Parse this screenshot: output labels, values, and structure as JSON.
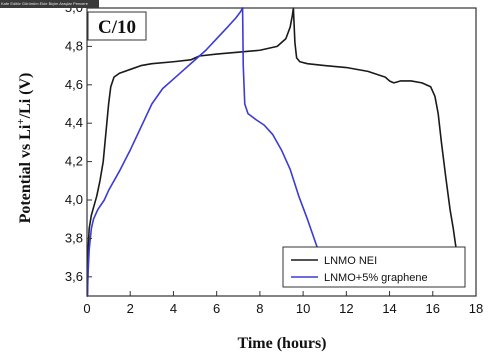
{
  "topbar": {
    "text": "Kafe  Editör  Görünüm  Ekle  Biçim  Araçlar  Pencere"
  },
  "chart_data": {
    "type": "line",
    "panel_label": "C/10",
    "xlabel": "Time (hours)",
    "ylabel_main": "Potential vs Li",
    "ylabel_sup": "+",
    "ylabel_end": "/Li (V)",
    "xlim": [
      0,
      18
    ],
    "ylim": [
      3.5,
      5.0
    ],
    "xticks": [
      0,
      2,
      4,
      6,
      8,
      10,
      12,
      14,
      16,
      18
    ],
    "yticks": [
      3.6,
      3.8,
      4.0,
      4.2,
      4.4,
      4.6,
      4.8,
      5.0
    ],
    "ytick_labels": [
      "3,6",
      "3,8",
      "4,0",
      "4,2",
      "4,4",
      "4,6",
      "4,8",
      "5,0"
    ],
    "grid": false,
    "legend_position": "bottom-right",
    "series": [
      {
        "name": "LNMO NEI",
        "color": "#1a1a1a",
        "x": [
          0.02,
          0.06,
          0.1,
          0.2,
          0.3,
          0.45,
          0.6,
          0.75,
          0.9,
          1.0,
          1.1,
          1.25,
          1.5,
          2.0,
          2.5,
          3.0,
          4.0,
          4.8,
          5.2,
          6.0,
          7.0,
          8.0,
          8.8,
          9.2,
          9.4,
          9.5,
          9.55,
          9.62,
          9.7,
          9.85,
          10.2,
          11.0,
          12.0,
          13.0,
          13.8,
          14.0,
          14.2,
          14.5,
          15.0,
          15.5,
          15.9,
          16.1,
          16.25,
          16.4,
          16.6,
          16.8,
          16.95,
          17.05,
          17.15
        ],
        "y": [
          3.5,
          3.76,
          3.85,
          3.92,
          3.96,
          4.02,
          4.1,
          4.2,
          4.38,
          4.5,
          4.59,
          4.64,
          4.66,
          4.68,
          4.7,
          4.71,
          4.72,
          4.73,
          4.75,
          4.76,
          4.77,
          4.78,
          4.8,
          4.84,
          4.9,
          4.96,
          5.0,
          4.82,
          4.74,
          4.72,
          4.71,
          4.7,
          4.69,
          4.67,
          4.64,
          4.62,
          4.61,
          4.62,
          4.62,
          4.61,
          4.59,
          4.54,
          4.45,
          4.3,
          4.12,
          3.95,
          3.85,
          3.77,
          3.7
        ]
      },
      {
        "name": "LNMO+5% graphene",
        "color": "#3b3bd6",
        "x": [
          0.02,
          0.05,
          0.1,
          0.2,
          0.3,
          0.5,
          0.8,
          1.0,
          1.5,
          2.0,
          2.5,
          3.0,
          3.5,
          4.0,
          4.5,
          5.0,
          5.5,
          6.0,
          6.5,
          6.9,
          7.1,
          7.2,
          7.23,
          7.3,
          7.45,
          7.8,
          8.2,
          8.6,
          9.0,
          9.4,
          9.8,
          10.2,
          10.6,
          11.0,
          11.3
        ],
        "y": [
          3.5,
          3.62,
          3.74,
          3.85,
          3.9,
          3.95,
          4.0,
          4.05,
          4.15,
          4.26,
          4.38,
          4.5,
          4.58,
          4.63,
          4.68,
          4.73,
          4.78,
          4.84,
          4.9,
          4.95,
          4.98,
          5.0,
          4.7,
          4.5,
          4.45,
          4.42,
          4.39,
          4.34,
          4.26,
          4.16,
          4.02,
          3.9,
          3.77,
          3.65,
          3.56
        ]
      }
    ]
  }
}
